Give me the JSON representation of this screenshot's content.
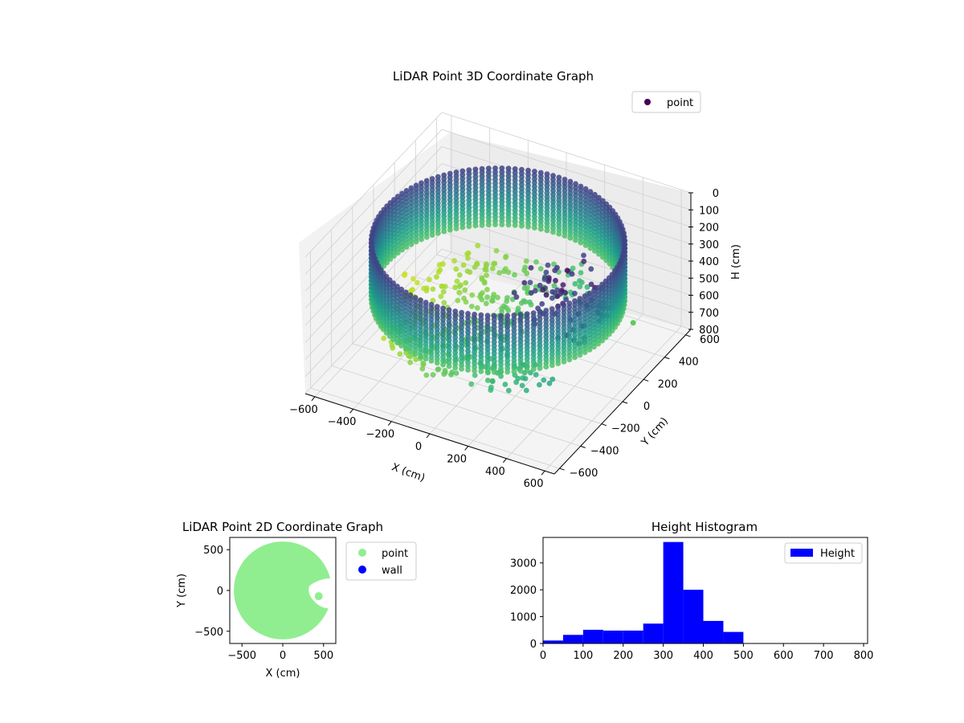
{
  "chart_data": [
    {
      "type": "scatter3d",
      "title": "LiDAR Point 3D Coordinate Graph",
      "xlabel": "X (cm)",
      "ylabel": "Y (cm)",
      "zlabel": "H (cm)",
      "xlim": [
        -650,
        650
      ],
      "ylim": [
        -650,
        650
      ],
      "zlim": [
        0,
        800
      ],
      "z_inverted": true,
      "x_ticks": [
        "−600",
        "−400",
        "−200",
        "0",
        "200",
        "400",
        "600"
      ],
      "y_ticks": [
        "−600",
        "−400",
        "−200",
        "0",
        "200",
        "400",
        "600"
      ],
      "z_ticks": [
        "0",
        "100",
        "200",
        "300",
        "400",
        "500",
        "600",
        "700",
        "800"
      ],
      "grid": true,
      "legend": {
        "position": "top-right",
        "entries": [
          {
            "name": "point",
            "color": "#440154"
          }
        ]
      },
      "colormap": "viridis",
      "wall_radius": 580,
      "wall_height": [
        100,
        450
      ],
      "floor_height": 550,
      "outlier_point": {
        "x": 420,
        "y": 520,
        "h": 760
      }
    },
    {
      "type": "scatter",
      "title": "LiDAR Point 2D Coordinate Graph",
      "xlabel": "X (cm)",
      "ylabel": "Y (cm)",
      "xlim": [
        -650,
        650
      ],
      "ylim": [
        -650,
        650
      ],
      "x_ticks": [
        "−500",
        "0",
        "500"
      ],
      "y_ticks": [
        "−500",
        "0",
        "500"
      ],
      "legend": {
        "position": "outside-right",
        "entries": [
          {
            "name": "point",
            "color": "#90ee90"
          },
          {
            "name": "wall",
            "color": "#0000ff"
          }
        ]
      },
      "point_region": {
        "shape": "disc",
        "center": [
          0,
          0
        ],
        "radius": 600
      }
    },
    {
      "type": "bar",
      "title": "Height Histogram",
      "xlabel": "",
      "ylabel": "",
      "xlim": [
        0,
        810
      ],
      "ylim": [
        0,
        3950
      ],
      "x_ticks": [
        0,
        100,
        200,
        300,
        400,
        500,
        600,
        700,
        800
      ],
      "y_ticks": [
        0,
        1000,
        2000,
        3000
      ],
      "color": "#0000ff",
      "legend": {
        "position": "top-right",
        "entries": [
          {
            "name": "Height",
            "color": "#0000ff"
          }
        ]
      },
      "bin_edges": [
        0,
        50,
        100,
        150,
        200,
        250,
        300,
        350,
        400,
        450,
        500
      ],
      "values": [
        110,
        320,
        510,
        480,
        480,
        740,
        3780,
        2000,
        840,
        430
      ]
    }
  ]
}
